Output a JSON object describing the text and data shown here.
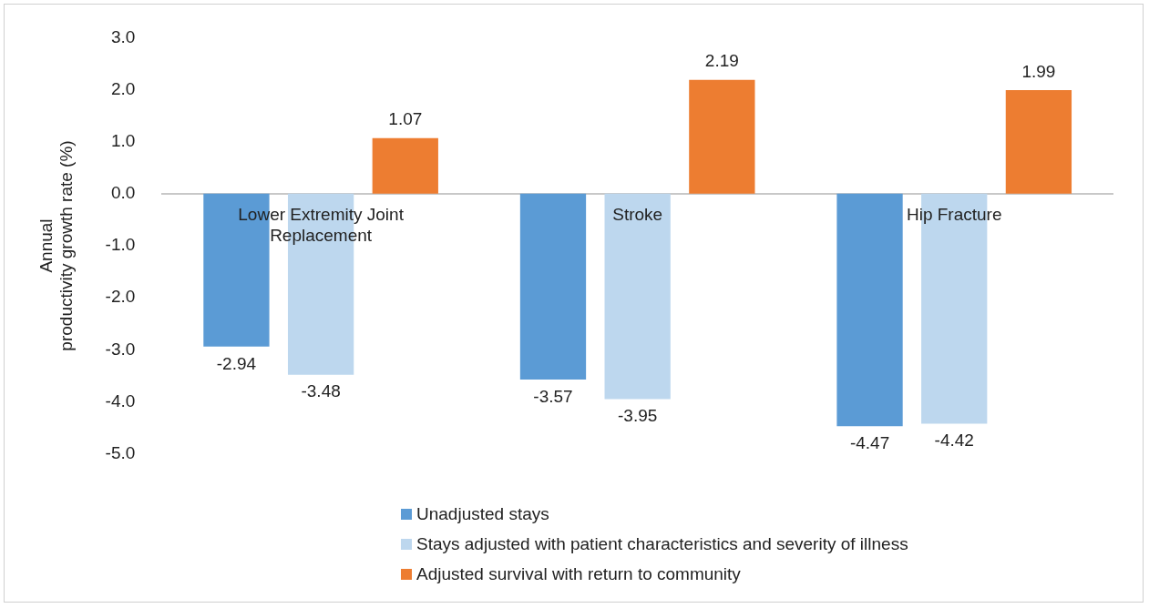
{
  "chart_data": {
    "type": "bar",
    "ylabel": "Annual productivity growth rate (%)",
    "categories": [
      "Lower Extremity Joint Replacement",
      "Stroke",
      "Hip Fracture"
    ],
    "series": [
      {
        "name": "Unadjusted stays",
        "color": "#5b9bd5",
        "values": [
          -2.94,
          -3.57,
          -4.47
        ]
      },
      {
        "name": "Stays adjusted with patient characteristics and severity of illness",
        "color": "#bdd7ee",
        "values": [
          -3.48,
          -3.95,
          -4.42
        ]
      },
      {
        "name": "Adjusted survival with return to community",
        "color": "#ed7d31",
        "values": [
          1.07,
          2.19,
          1.99
        ]
      }
    ],
    "ylim": [
      -5,
      3
    ],
    "yticks": [
      {
        "value": -5,
        "label": "-5.0"
      },
      {
        "value": -4,
        "label": "-4.0"
      },
      {
        "value": -3,
        "label": "-3.0"
      },
      {
        "value": -2,
        "label": "-2.0"
      },
      {
        "value": -1,
        "label": "-1.0"
      },
      {
        "value": 0,
        "label": "0.0"
      },
      {
        "value": 1,
        "label": "1.0"
      },
      {
        "value": 2,
        "label": "2.0"
      },
      {
        "value": 3,
        "label": "3.0"
      }
    ],
    "grid": false,
    "legend": "bottom",
    "data_labels": true
  }
}
